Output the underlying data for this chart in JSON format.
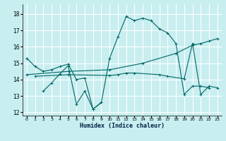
{
  "title": "",
  "xlabel": "Humidex (Indice chaleur)",
  "background_color": "#c8eef0",
  "grid_color": "#ffffff",
  "line_color": "#006666",
  "xlim": [
    -0.5,
    23.5
  ],
  "ylim": [
    11.8,
    18.6
  ],
  "yticks": [
    12,
    13,
    14,
    15,
    16,
    17,
    18
  ],
  "xticks": [
    0,
    1,
    2,
    3,
    4,
    5,
    6,
    7,
    8,
    9,
    10,
    11,
    12,
    13,
    14,
    15,
    16,
    17,
    18,
    19,
    20,
    21,
    22,
    23
  ],
  "series": [
    {
      "x": [
        0,
        1,
        2,
        3,
        4,
        5,
        6,
        7,
        8,
        9,
        10,
        11,
        12,
        13,
        14,
        15,
        16,
        17,
        18,
        19,
        20,
        21,
        22
      ],
      "y": [
        15.3,
        14.8,
        14.5,
        14.6,
        14.8,
        14.95,
        14.0,
        14.1,
        12.2,
        12.6,
        15.3,
        16.6,
        17.85,
        17.6,
        17.75,
        17.6,
        17.1,
        16.85,
        16.2,
        13.1,
        13.6,
        13.6,
        13.5
      ]
    },
    {
      "x": [
        2,
        3,
        4,
        5,
        6,
        7,
        8,
        9
      ],
      "y": [
        13.3,
        13.8,
        14.35,
        14.85,
        12.5,
        13.3,
        12.2,
        12.6
      ]
    },
    {
      "x": [
        0,
        5,
        10,
        14,
        18,
        20,
        21,
        22,
        23
      ],
      "y": [
        14.3,
        14.5,
        14.6,
        15.0,
        15.6,
        16.1,
        16.2,
        16.35,
        16.5
      ]
    },
    {
      "x": [
        1,
        5,
        10,
        11,
        12,
        13,
        16,
        17,
        19,
        20,
        21,
        22,
        23
      ],
      "y": [
        14.2,
        14.3,
        14.25,
        14.3,
        14.4,
        14.4,
        14.3,
        14.2,
        14.05,
        16.2,
        13.1,
        13.6,
        13.5
      ]
    }
  ]
}
